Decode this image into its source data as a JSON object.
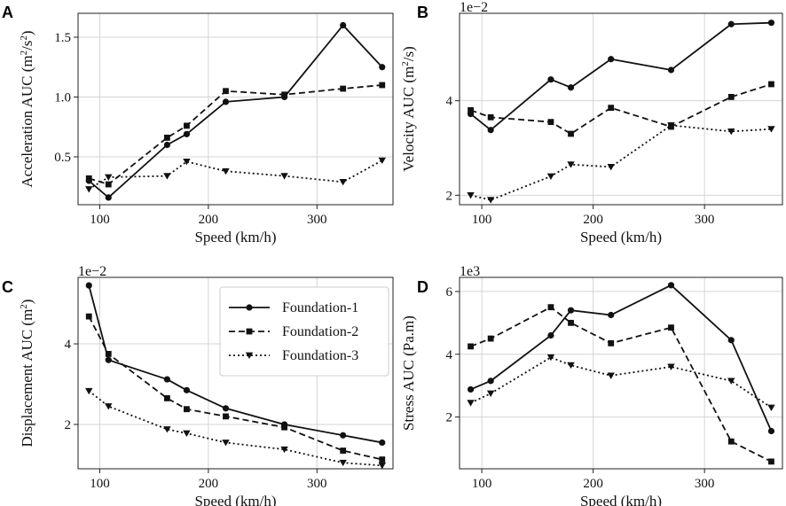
{
  "chart_data": [
    {
      "panel": "A",
      "type": "line",
      "title": "",
      "xlabel": "Speed (km/h)",
      "ylabel": "Acceleration AUC (m²/s²)",
      "scale_label": "",
      "xlim": [
        80,
        370
      ],
      "ylim": [
        0.1,
        1.7
      ],
      "xticks": [
        100,
        200,
        300
      ],
      "yticks": [
        0.5,
        1.0,
        1.5
      ],
      "ytick_labels": [
        "0.5",
        "1.0",
        "1.5"
      ],
      "x": [
        90,
        108,
        162,
        180,
        216,
        270,
        324,
        360
      ],
      "series": [
        {
          "name": "Foundation-1",
          "values": [
            0.3,
            0.16,
            0.6,
            0.69,
            0.96,
            1.0,
            1.6,
            1.25
          ]
        },
        {
          "name": "Foundation-2",
          "values": [
            0.32,
            0.27,
            0.66,
            0.76,
            1.05,
            1.02,
            1.07,
            1.1
          ]
        },
        {
          "name": "Foundation-3",
          "values": [
            0.23,
            0.33,
            0.34,
            0.46,
            0.38,
            0.34,
            0.29,
            0.47
          ]
        }
      ]
    },
    {
      "panel": "B",
      "type": "line",
      "title": "",
      "xlabel": "Speed (km/h)",
      "ylabel": "Velocity AUC (m²/s)",
      "scale_label": "1e−2",
      "xlim": [
        80,
        370
      ],
      "ylim": [
        1.8,
        5.85
      ],
      "xticks": [
        100,
        200,
        300
      ],
      "yticks": [
        2,
        4
      ],
      "ytick_labels": [
        "2",
        "4"
      ],
      "x": [
        90,
        108,
        162,
        180,
        216,
        270,
        324,
        360
      ],
      "series": [
        {
          "name": "Foundation-1",
          "values": [
            3.72,
            3.38,
            4.45,
            4.28,
            4.88,
            4.65,
            5.62,
            5.65
          ]
        },
        {
          "name": "Foundation-2",
          "values": [
            3.8,
            3.65,
            3.55,
            3.3,
            3.85,
            3.45,
            4.08,
            4.35
          ]
        },
        {
          "name": "Foundation-3",
          "values": [
            2.0,
            1.9,
            2.4,
            2.65,
            2.6,
            3.48,
            3.35,
            3.4
          ]
        }
      ]
    },
    {
      "panel": "C",
      "type": "line",
      "title": "",
      "xlabel": "Speed (km/h)",
      "ylabel": "Displacement AUC (m²)",
      "scale_label": "1e−2",
      "xlim": [
        80,
        370
      ],
      "ylim": [
        0.9,
        5.65
      ],
      "xticks": [
        100,
        200,
        300
      ],
      "yticks": [
        2,
        4
      ],
      "ytick_labels": [
        "2",
        "4"
      ],
      "x": [
        90,
        108,
        162,
        180,
        216,
        270,
        324,
        360
      ],
      "legend": {
        "placement": "upper-right",
        "entries": [
          "Foundation-1",
          "Foundation-2",
          "Foundation-3"
        ]
      },
      "series": [
        {
          "name": "Foundation-1",
          "values": [
            5.45,
            3.6,
            3.12,
            2.85,
            2.4,
            2.0,
            1.73,
            1.55
          ]
        },
        {
          "name": "Foundation-2",
          "values": [
            4.68,
            3.75,
            2.65,
            2.38,
            2.2,
            1.93,
            1.35,
            1.13
          ]
        },
        {
          "name": "Foundation-3",
          "values": [
            2.83,
            2.45,
            1.88,
            1.78,
            1.55,
            1.38,
            1.05,
            0.98
          ]
        }
      ]
    },
    {
      "panel": "D",
      "type": "line",
      "title": "",
      "xlabel": "Speed (km/h)",
      "ylabel": "Stress AUC (Pa.m)",
      "scale_label": "1e3",
      "xlim": [
        80,
        370
      ],
      "ylim": [
        0.35,
        6.45
      ],
      "xticks": [
        100,
        200,
        300
      ],
      "yticks": [
        2,
        4,
        6
      ],
      "ytick_labels": [
        "2",
        "4",
        "6"
      ],
      "x": [
        90,
        108,
        162,
        180,
        216,
        270,
        324,
        360
      ],
      "series": [
        {
          "name": "Foundation-1",
          "values": [
            2.88,
            3.15,
            4.6,
            5.4,
            5.25,
            6.2,
            4.45,
            1.55
          ]
        },
        {
          "name": "Foundation-2",
          "values": [
            4.25,
            4.5,
            5.5,
            5.0,
            4.35,
            4.85,
            1.22,
            0.58
          ]
        },
        {
          "name": "Foundation-3",
          "values": [
            2.45,
            2.75,
            3.9,
            3.65,
            3.32,
            3.6,
            3.15,
            2.3
          ]
        }
      ]
    }
  ]
}
